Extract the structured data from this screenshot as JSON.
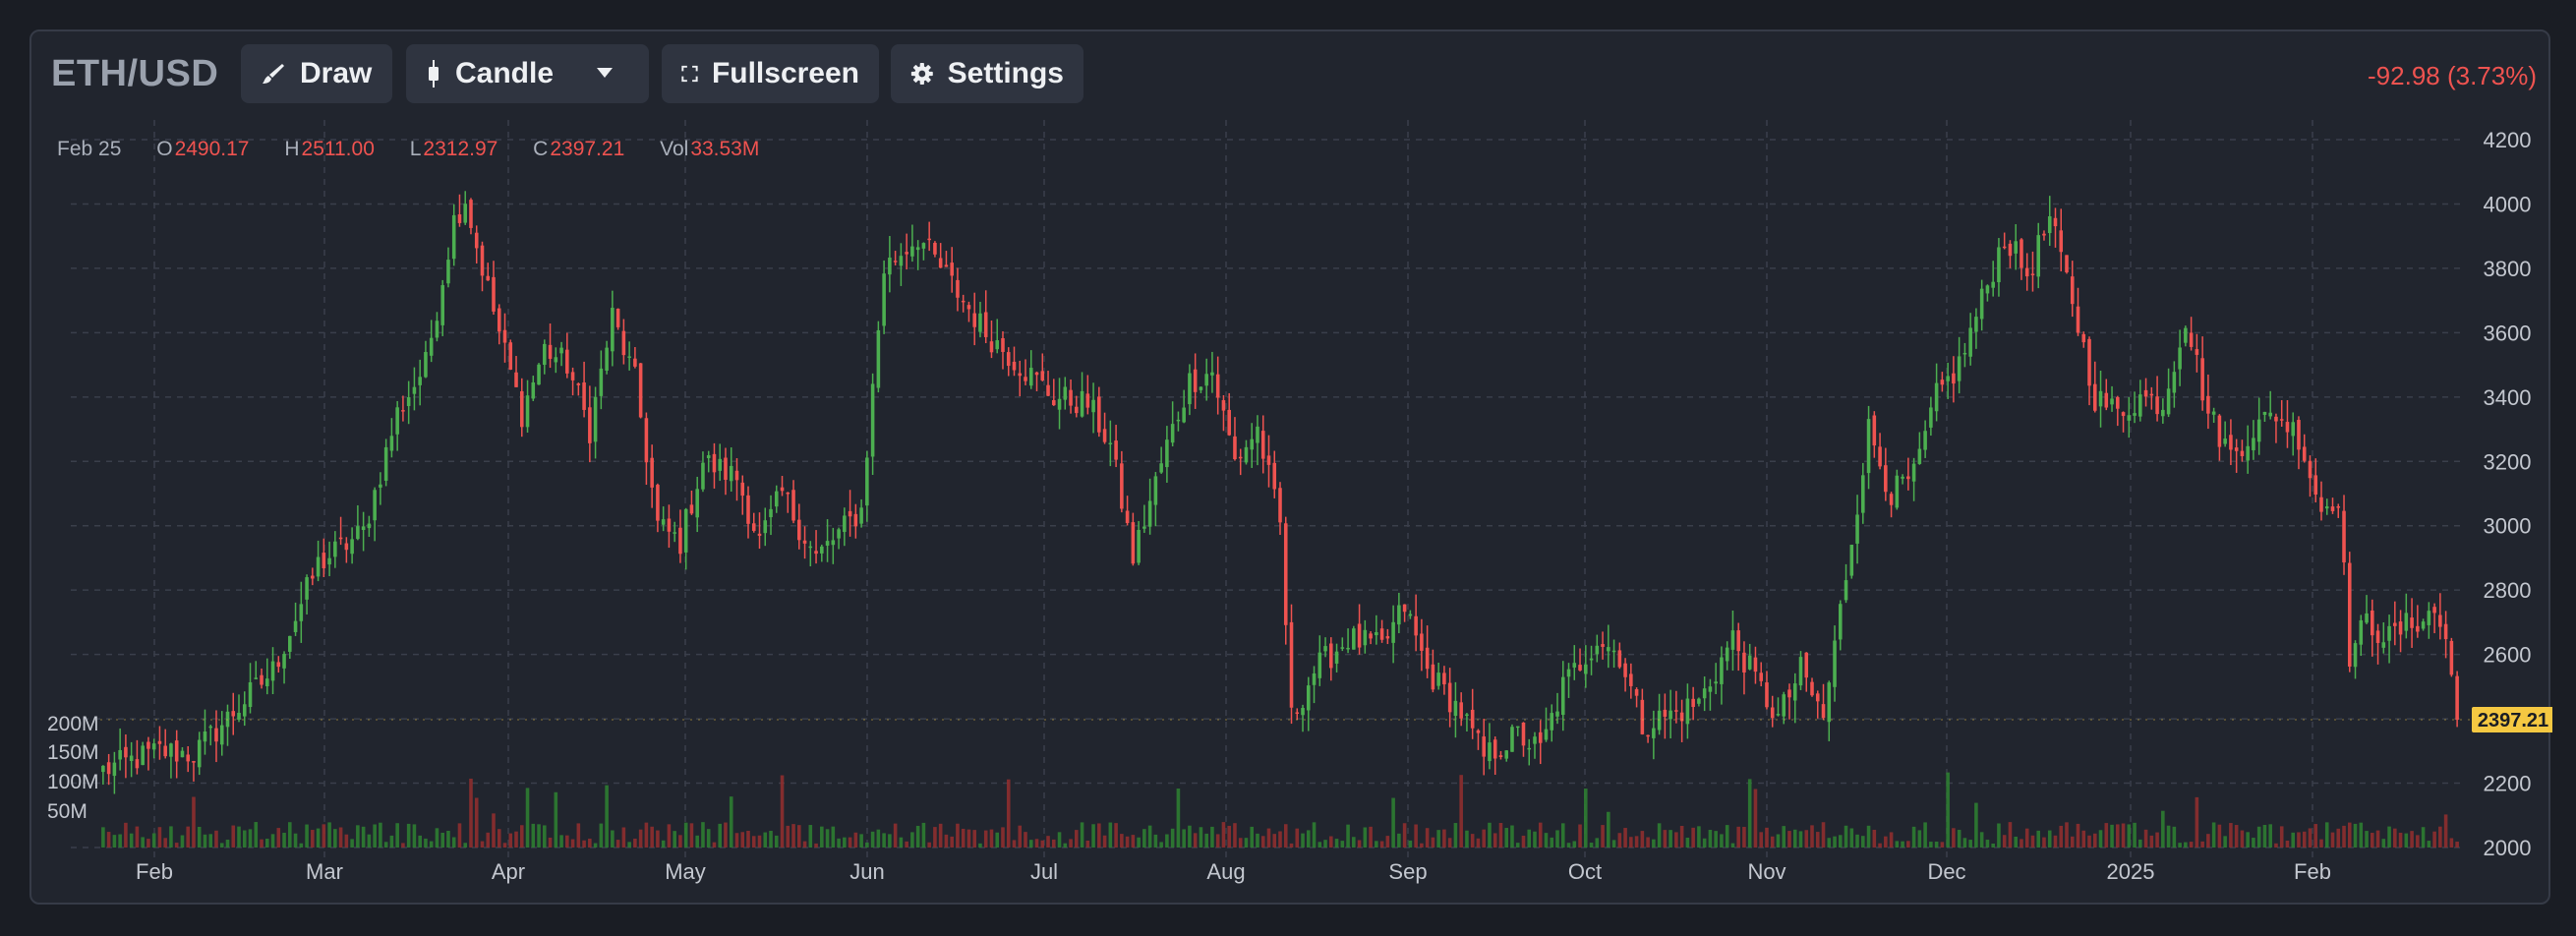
{
  "toolbar": {
    "symbol": "ETH/USD",
    "draw_label": "Draw",
    "chart_type_label": "Candle",
    "fullscreen_label": "Fullscreen",
    "settings_label": "Settings",
    "change_text": "-92.98 (3.73%)"
  },
  "legend": {
    "date": "Feb 25",
    "o_label": "O",
    "o_value": "2490.17",
    "h_label": "H",
    "h_value": "2511.00",
    "l_label": "L",
    "l_value": "2312.97",
    "c_label": "C",
    "c_value": "2397.21",
    "vol_label": "Vol",
    "vol_value": "33.53M"
  },
  "colors": {
    "up": "#4caf50",
    "down": "#ef5350",
    "last_price_tag": "#f5c842",
    "grid": "#3a3f4b"
  },
  "chart_data": {
    "type": "candlestick",
    "title": "ETH/USD",
    "ylim": [
      2000,
      4200
    ],
    "y_ticks": [
      "4200",
      "4000",
      "3800",
      "3600",
      "3400",
      "3200",
      "3000",
      "2800",
      "2600",
      "2400",
      "2200",
      "2000"
    ],
    "x_ticks": [
      "Feb",
      "Mar",
      "Apr",
      "May",
      "Jun",
      "Jul",
      "Aug",
      "Sep",
      "Oct",
      "Nov",
      "Dec",
      "2025",
      "Feb"
    ],
    "volume_ticks": [
      "200M",
      "150M",
      "100M",
      "50M"
    ],
    "last_price": "2397.21",
    "grid": true,
    "close_waypoints": [
      {
        "day": 0,
        "close": 2240
      },
      {
        "day": 10,
        "close": 2300
      },
      {
        "day": 16,
        "close": 2290
      },
      {
        "day": 30,
        "close": 2550
      },
      {
        "day": 38,
        "close": 2880
      },
      {
        "day": 46,
        "close": 2980
      },
      {
        "day": 52,
        "close": 3350
      },
      {
        "day": 57,
        "close": 3500
      },
      {
        "day": 62,
        "close": 3950
      },
      {
        "day": 64,
        "close": 4020
      },
      {
        "day": 66,
        "close": 3870
      },
      {
        "day": 70,
        "close": 3600
      },
      {
        "day": 74,
        "close": 3350
      },
      {
        "day": 78,
        "close": 3550
      },
      {
        "day": 82,
        "close": 3500
      },
      {
        "day": 86,
        "close": 3300
      },
      {
        "day": 90,
        "close": 3650
      },
      {
        "day": 94,
        "close": 3450
      },
      {
        "day": 98,
        "close": 3000
      },
      {
        "day": 102,
        "close": 2950
      },
      {
        "day": 106,
        "close": 3200
      },
      {
        "day": 112,
        "close": 3150
      },
      {
        "day": 116,
        "close": 2950
      },
      {
        "day": 120,
        "close": 3100
      },
      {
        "day": 126,
        "close": 2900
      },
      {
        "day": 134,
        "close": 3050
      },
      {
        "day": 138,
        "close": 3800
      },
      {
        "day": 144,
        "close": 3900
      },
      {
        "day": 150,
        "close": 3750
      },
      {
        "day": 156,
        "close": 3600
      },
      {
        "day": 162,
        "close": 3500
      },
      {
        "day": 168,
        "close": 3400
      },
      {
        "day": 174,
        "close": 3380
      },
      {
        "day": 178,
        "close": 3250
      },
      {
        "day": 182,
        "close": 2900
      },
      {
        "day": 188,
        "close": 3250
      },
      {
        "day": 192,
        "close": 3450
      },
      {
        "day": 196,
        "close": 3480
      },
      {
        "day": 200,
        "close": 3200
      },
      {
        "day": 204,
        "close": 3300
      },
      {
        "day": 208,
        "close": 3000
      },
      {
        "day": 210,
        "close": 2400
      },
      {
        "day": 214,
        "close": 2550
      },
      {
        "day": 220,
        "close": 2650
      },
      {
        "day": 226,
        "close": 2620
      },
      {
        "day": 230,
        "close": 2750
      },
      {
        "day": 234,
        "close": 2550
      },
      {
        "day": 240,
        "close": 2420
      },
      {
        "day": 244,
        "close": 2280
      },
      {
        "day": 250,
        "close": 2350
      },
      {
        "day": 254,
        "close": 2300
      },
      {
        "day": 258,
        "close": 2500
      },
      {
        "day": 264,
        "close": 2650
      },
      {
        "day": 268,
        "close": 2600
      },
      {
        "day": 272,
        "close": 2380
      },
      {
        "day": 278,
        "close": 2420
      },
      {
        "day": 282,
        "close": 2450
      },
      {
        "day": 288,
        "close": 2650
      },
      {
        "day": 292,
        "close": 2520
      },
      {
        "day": 296,
        "close": 2400
      },
      {
        "day": 300,
        "close": 2550
      },
      {
        "day": 304,
        "close": 2400
      },
      {
        "day": 308,
        "close": 2850
      },
      {
        "day": 312,
        "close": 3300
      },
      {
        "day": 316,
        "close": 3100
      },
      {
        "day": 320,
        "close": 3150
      },
      {
        "day": 324,
        "close": 3400
      },
      {
        "day": 328,
        "close": 3500
      },
      {
        "day": 332,
        "close": 3700
      },
      {
        "day": 336,
        "close": 3900
      },
      {
        "day": 340,
        "close": 3780
      },
      {
        "day": 344,
        "close": 3950
      },
      {
        "day": 348,
        "close": 3700
      },
      {
        "day": 352,
        "close": 3400
      },
      {
        "day": 356,
        "close": 3350
      },
      {
        "day": 360,
        "close": 3400
      },
      {
        "day": 364,
        "close": 3380
      },
      {
        "day": 368,
        "close": 3650
      },
      {
        "day": 372,
        "close": 3350
      },
      {
        "day": 376,
        "close": 3220
      },
      {
        "day": 380,
        "close": 3300
      },
      {
        "day": 384,
        "close": 3350
      },
      {
        "day": 388,
        "close": 3280
      },
      {
        "day": 392,
        "close": 3050
      },
      {
        "day": 395,
        "close": 3100
      },
      {
        "day": 397,
        "close": 2600
      },
      {
        "day": 400,
        "close": 2700
      },
      {
        "day": 404,
        "close": 2650
      },
      {
        "day": 408,
        "close": 2700
      },
      {
        "day": 412,
        "close": 2730
      },
      {
        "day": 414,
        "close": 2650
      },
      {
        "day": 416,
        "close": 2397
      }
    ]
  }
}
